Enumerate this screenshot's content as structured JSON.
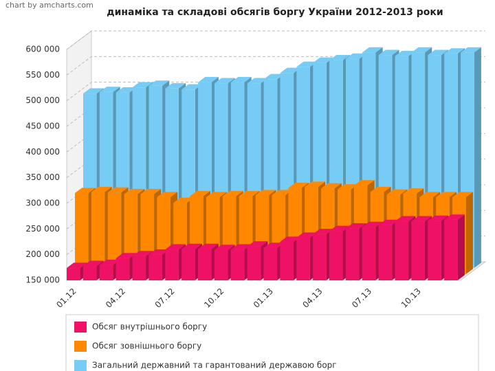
{
  "chart_data": {
    "type": "bar3d",
    "credit": "chart by amcharts.com",
    "title": "динаміка та складові обсягів боргу України 2012-2013 роки",
    "categories": [
      "01.12",
      null,
      null,
      "04.12",
      null,
      null,
      "07.12",
      null,
      null,
      "10.12",
      null,
      null,
      "01.13",
      null,
      null,
      "04.13",
      null,
      null,
      "07.13",
      null,
      null,
      "10.13",
      null,
      null
    ],
    "series": [
      {
        "name": "Обсяг внутрішнього боргу",
        "color": "#ee1166",
        "values": [
          174000,
          178000,
          180000,
          193000,
          197000,
          200000,
          210000,
          211000,
          211000,
          209000,
          210000,
          216000,
          213000,
          225000,
          233000,
          240000,
          246000,
          251000,
          254000,
          258000,
          265000,
          265000,
          266000,
          268000
        ]
      },
      {
        "name": "Обсяг зовнішнього боргу",
        "color": "#ff8800",
        "values": [
          308000,
          310000,
          309000,
          306000,
          306000,
          300000,
          289000,
          302000,
          300000,
          302000,
          302000,
          304000,
          304000,
          318000,
          320000,
          317000,
          315000,
          323000,
          310000,
          305000,
          307000,
          300000,
          300000,
          300000
        ]
      },
      {
        "name": "Загальний державний та гарантований державою борг",
        "color": "#77ccf5",
        "values": [
          490000,
          493000,
          492000,
          502000,
          505000,
          500000,
          498000,
          512000,
          510000,
          512000,
          510000,
          518000,
          530000,
          542000,
          550000,
          555000,
          558000,
          570000,
          565000,
          563000,
          570000,
          565000,
          568000,
          570000
        ]
      }
    ],
    "ylim": [
      150000,
      600000
    ],
    "yticks": [
      {
        "value": 150000,
        "label": "150 000"
      },
      {
        "value": 200000,
        "label": "200 000"
      },
      {
        "value": 250000,
        "label": "250 000"
      },
      {
        "value": 300000,
        "label": "300 000"
      },
      {
        "value": 350000,
        "label": "350 000"
      },
      {
        "value": 400000,
        "label": "400 000"
      },
      {
        "value": 450000,
        "label": "450 000"
      },
      {
        "value": 500000,
        "label": "500 000"
      },
      {
        "value": 550000,
        "label": "550 000"
      },
      {
        "value": 600000,
        "label": "600 000"
      }
    ],
    "grid": true
  }
}
